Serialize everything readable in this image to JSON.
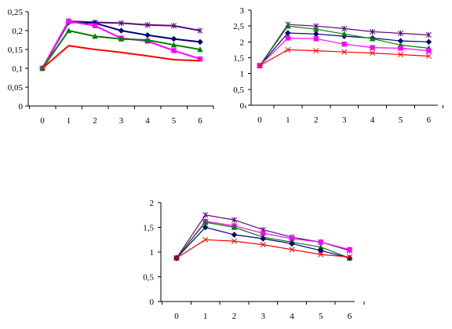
{
  "chart_data": [
    {
      "type": "line",
      "x": [
        0,
        1,
        2,
        3,
        4,
        5,
        6
      ],
      "ylim": [
        0,
        0.25
      ],
      "yticks": [
        "0",
        "0,05",
        "0,1",
        "0,15",
        "0,2",
        "0,25"
      ],
      "xticks": [
        "0",
        "1",
        "2",
        "3",
        "4",
        "5",
        "6"
      ],
      "grid": false,
      "series": [
        {
          "color": "#5b0b7a",
          "marker": "star",
          "values": [
            0.1,
            0.225,
            0.222,
            0.22,
            0.215,
            0.213,
            0.2
          ]
        },
        {
          "color": "#00007a",
          "marker": "diamond",
          "values": [
            0.1,
            0.222,
            0.22,
            0.2,
            0.188,
            0.178,
            0.17
          ]
        },
        {
          "color": "#ff00ff",
          "marker": "square",
          "values": [
            0.1,
            0.225,
            0.213,
            0.18,
            0.172,
            0.147,
            0.125
          ]
        },
        {
          "color": "#008000",
          "marker": "triangle",
          "values": [
            0.1,
            0.2,
            0.185,
            0.178,
            0.175,
            0.162,
            0.15
          ]
        },
        {
          "color": "#ff0000",
          "marker": "none",
          "values": [
            0.1,
            0.16,
            0.15,
            0.142,
            0.133,
            0.123,
            0.12
          ]
        }
      ]
    },
    {
      "type": "line",
      "x": [
        0,
        1,
        2,
        3,
        4,
        5,
        6
      ],
      "ylim": [
        0,
        3
      ],
      "yticks": [
        "0",
        "0,5",
        "1",
        "1,5",
        "2",
        "2,5",
        "3"
      ],
      "xticks": [
        "0",
        "1",
        "2",
        "3",
        "4",
        "5",
        "6"
      ],
      "grid": false,
      "series": [
        {
          "color": "#5b0b7a",
          "marker": "star",
          "values": [
            1.25,
            2.55,
            2.5,
            2.42,
            2.32,
            2.27,
            2.22
          ]
        },
        {
          "color": "#00007a",
          "marker": "diamond",
          "values": [
            1.25,
            2.28,
            2.25,
            2.18,
            2.12,
            2.03,
            2.0
          ]
        },
        {
          "color": "#008000",
          "marker": "triangle",
          "values": [
            1.25,
            2.5,
            2.4,
            2.25,
            2.1,
            1.9,
            1.8
          ]
        },
        {
          "color": "#ff00ff",
          "marker": "square",
          "values": [
            1.25,
            2.12,
            2.1,
            1.93,
            1.82,
            1.8,
            1.72
          ]
        },
        {
          "color": "#ff0000",
          "marker": "x",
          "values": [
            1.25,
            1.75,
            1.72,
            1.68,
            1.65,
            1.6,
            1.55
          ]
        }
      ]
    },
    {
      "type": "line",
      "x": [
        0,
        1,
        2,
        3,
        4,
        5,
        6
      ],
      "ylim": [
        0,
        2
      ],
      "yticks": [
        "0",
        "0,5",
        "1",
        "1,5",
        "2"
      ],
      "xticks": [
        "0",
        "1",
        "2",
        "3",
        "4",
        "5",
        "6"
      ],
      "grid": false,
      "series": [
        {
          "color": "#5b0b7a",
          "marker": "star",
          "values": [
            0.88,
            1.75,
            1.65,
            1.45,
            1.3,
            1.2,
            1.03
          ]
        },
        {
          "color": "#ff00ff",
          "marker": "square",
          "values": [
            0.88,
            1.62,
            1.53,
            1.38,
            1.27,
            1.2,
            1.05
          ]
        },
        {
          "color": "#008000",
          "marker": "triangle",
          "values": [
            0.88,
            1.6,
            1.5,
            1.3,
            1.2,
            1.1,
            0.88
          ]
        },
        {
          "color": "#00007a",
          "marker": "diamond",
          "values": [
            0.88,
            1.5,
            1.35,
            1.27,
            1.17,
            1.03,
            0.88
          ]
        },
        {
          "color": "#ff0000",
          "marker": "x",
          "values": [
            0.88,
            1.25,
            1.22,
            1.15,
            1.05,
            0.95,
            0.9
          ]
        }
      ]
    }
  ]
}
